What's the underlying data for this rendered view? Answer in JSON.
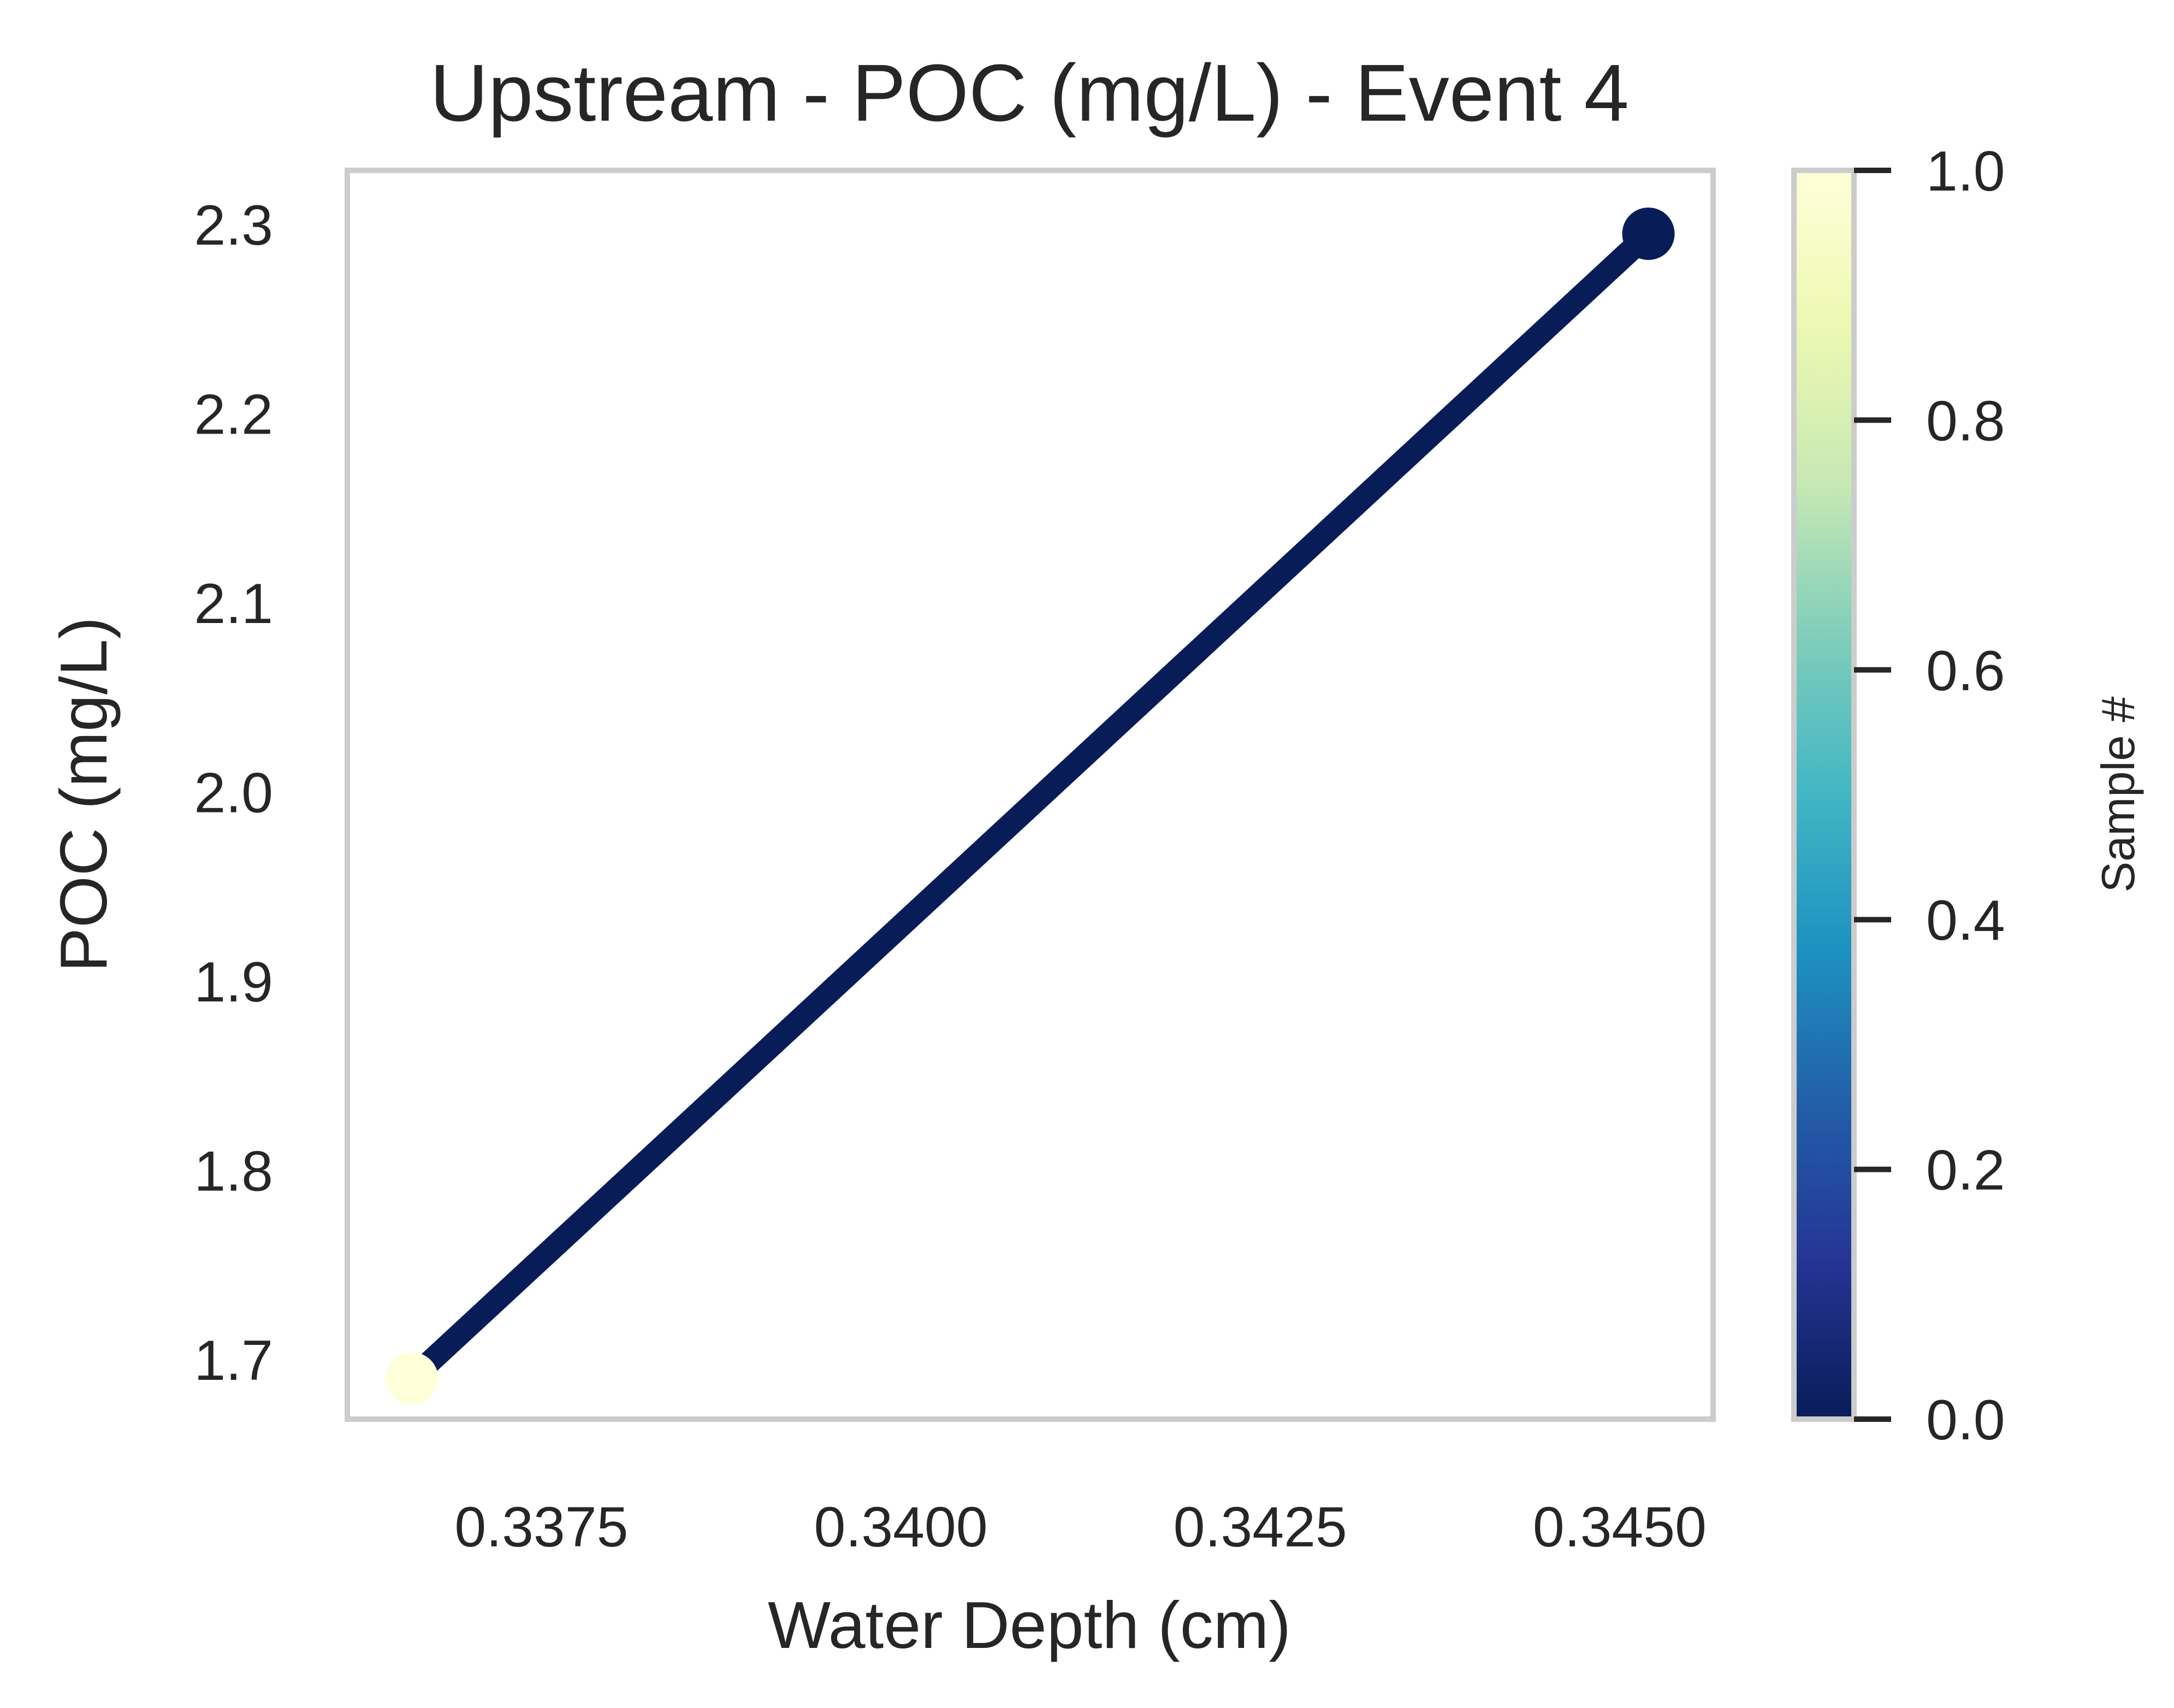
{
  "chart_data": {
    "type": "line",
    "title": "Upstream - POC (mg/L) - Event 4",
    "xlabel": "Water Depth (cm)",
    "ylabel": "POC (mg/L)",
    "xlim": [
      0.33615,
      0.34565
    ],
    "ylim": [
      1.6685,
      2.3285
    ],
    "x_ticks": [
      "0.3375",
      "0.3400",
      "0.3425",
      "0.3450"
    ],
    "y_ticks": [
      "1.7",
      "1.8",
      "1.9",
      "2.0",
      "2.1",
      "2.2",
      "2.3"
    ],
    "grid": false,
    "series": [
      {
        "x": [
          0.3366,
          0.3452
        ],
        "y": [
          1.69,
          2.295
        ],
        "color": "#081d58",
        "point_colors": [
          "#ffffd9",
          "#081d58"
        ],
        "sample_index": [
          1,
          0
        ]
      }
    ],
    "colorbar": {
      "label": "Sample #",
      "colormap": "YlGnBu",
      "range": [
        0.0,
        1.0
      ],
      "ticks": [
        "0.0",
        "0.2",
        "0.4",
        "0.6",
        "0.8",
        "1.0"
      ],
      "stops": [
        "#081d58",
        "#253494",
        "#225ea8",
        "#1d91c0",
        "#41b6c4",
        "#7fcdbb",
        "#c7e9b4",
        "#edf8b1",
        "#ffffd9"
      ]
    }
  }
}
